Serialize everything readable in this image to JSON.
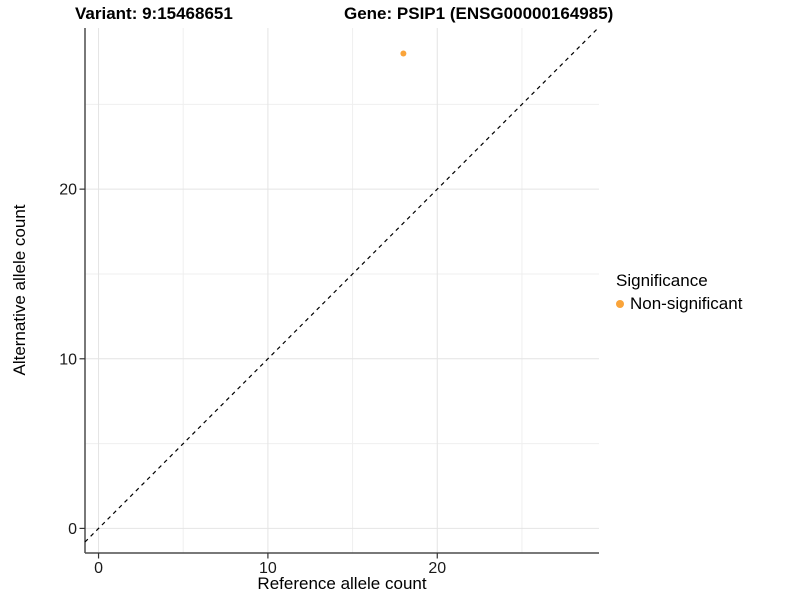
{
  "chart_data": {
    "type": "scatter",
    "title_left": "Variant: 9:15468651",
    "title_right": "Gene: PSIP1 (ENSG00000164985)",
    "xlabel": "Reference allele count",
    "ylabel": "Alternative allele count",
    "xlim": [
      -0.8,
      29.55
    ],
    "ylim": [
      -1.45,
      29.5
    ],
    "x_major_ticks": [
      0,
      10,
      20
    ],
    "y_major_ticks": [
      0,
      10,
      20
    ],
    "x_minor_ticks": [
      5,
      15,
      25
    ],
    "y_minor_ticks": [
      5,
      15,
      25
    ],
    "grid": true,
    "identity_line": {
      "equation": "y = x",
      "style": "dashed",
      "color": "#000000"
    },
    "series": [
      {
        "name": "Non-significant",
        "color": "#FAA43A",
        "points": [
          {
            "x": 18,
            "y": 28
          }
        ]
      }
    ],
    "legend": {
      "title": "Significance",
      "position": "right",
      "items": [
        {
          "label": "Non-significant",
          "color": "#FAA43A"
        }
      ]
    },
    "colors": {
      "background": "#FFFFFF",
      "grid_major": "#E4E4E4",
      "grid_minor": "#EFEFEF",
      "axis_line": "#4D4D4D",
      "tick_mark": "#333333",
      "tick_label": "#1A1A1A"
    }
  }
}
